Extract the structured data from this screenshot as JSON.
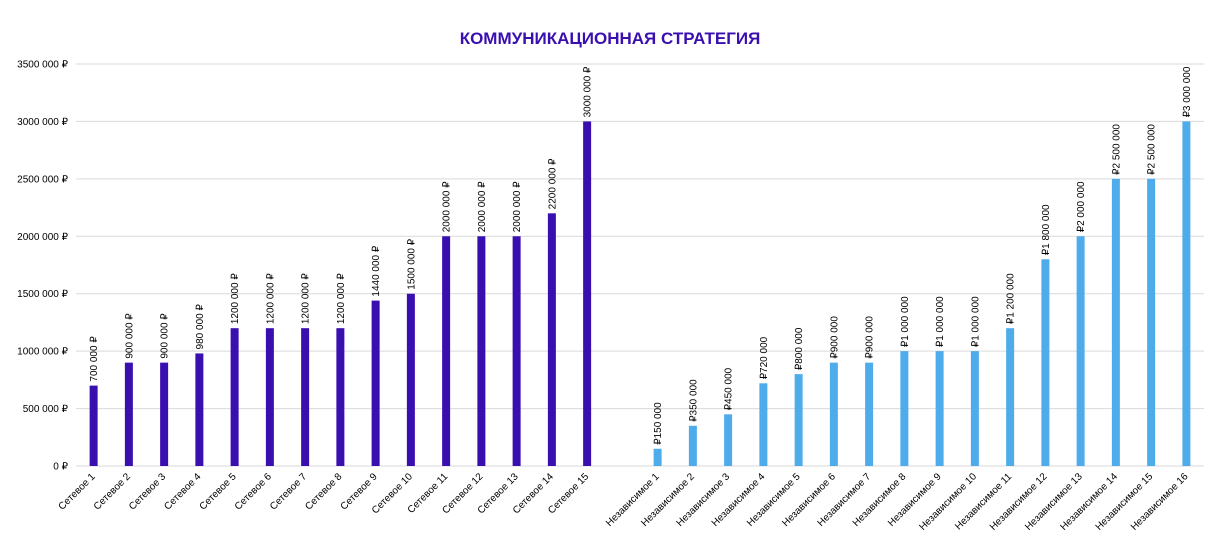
{
  "chart_data": {
    "type": "bar",
    "title": "КОММУНИКАЦИОННАЯ СТРАТЕГИЯ",
    "xlabel": "",
    "ylabel": "",
    "ylim": [
      0,
      3500000
    ],
    "grid": true,
    "yticks": [
      {
        "value": 0,
        "label": "0 ₽"
      },
      {
        "value": 500000,
        "label": "500 000 ₽"
      },
      {
        "value": 1000000,
        "label": "1000 000 ₽"
      },
      {
        "value": 1500000,
        "label": "1500 000 ₽"
      },
      {
        "value": 2000000,
        "label": "2000 000 ₽"
      },
      {
        "value": 2500000,
        "label": "2500 000 ₽"
      },
      {
        "value": 3000000,
        "label": "3000 000 ₽"
      },
      {
        "value": 3500000,
        "label": "3500 000 ₽"
      }
    ],
    "groups": [
      {
        "color": "#3a0fb0",
        "categories": [
          "Сетевое 1",
          "Сетевое 2",
          "Сетевое 3",
          "Сетевое 4",
          "Сетевое 5",
          "Сетевое 6",
          "Сетевое 7",
          "Сетевое 8",
          "Сетевое 9",
          "Сетевое 10",
          "Сетевое 11",
          "Сетевое 12",
          "Сетевое 13",
          "Сетевое 14",
          "Сетевое 15"
        ],
        "values": [
          700000,
          900000,
          900000,
          980000,
          1200000,
          1200000,
          1200000,
          1200000,
          1440000,
          1500000,
          2000000,
          2000000,
          2000000,
          2200000,
          3000000
        ],
        "labels": [
          "700 000 ₽",
          "900 000 ₽",
          "900 000 ₽",
          "980 000 ₽",
          "1200 000 ₽",
          "1200 000 ₽",
          "1200 000 ₽",
          "1200 000 ₽",
          "1440 000 ₽",
          "1500 000 ₽",
          "2000 000 ₽",
          "2000 000 ₽",
          "2000 000 ₽",
          "2200 000 ₽",
          "3000 000 ₽"
        ]
      },
      {
        "color": "#4facea",
        "categories": [
          "Независимое 1",
          "Независимое 2",
          "Независимое 3",
          "Независимое 4",
          "Независимое 5",
          "Независимое 6",
          "Независимое 7",
          "Независимое 8",
          "Независимое 9",
          "Независимое 10",
          "Независимое 11",
          "Независимое 12",
          "Независимое 13",
          "Независимое 14",
          "Независимое 15",
          "Независимое 16"
        ],
        "values": [
          150000,
          350000,
          450000,
          720000,
          800000,
          900000,
          900000,
          1000000,
          1000000,
          1000000,
          1200000,
          1800000,
          2000000,
          2500000,
          2500000,
          3000000
        ],
        "labels": [
          "₽150 000",
          "₽350 000",
          "₽450 000",
          "₽720 000",
          "₽800 000",
          "₽900 000",
          "₽900 000",
          "₽1 000 000",
          "₽1 000 000",
          "₽1 000 000",
          "₽1 200 000",
          "₽1 800 000",
          "₽2 000 000",
          "₽2 500 000",
          "₽2 500 000",
          "₽3 000 000"
        ]
      }
    ],
    "colors": {
      "title": "#3a0fb0",
      "grid": "#d9d9d9"
    }
  }
}
